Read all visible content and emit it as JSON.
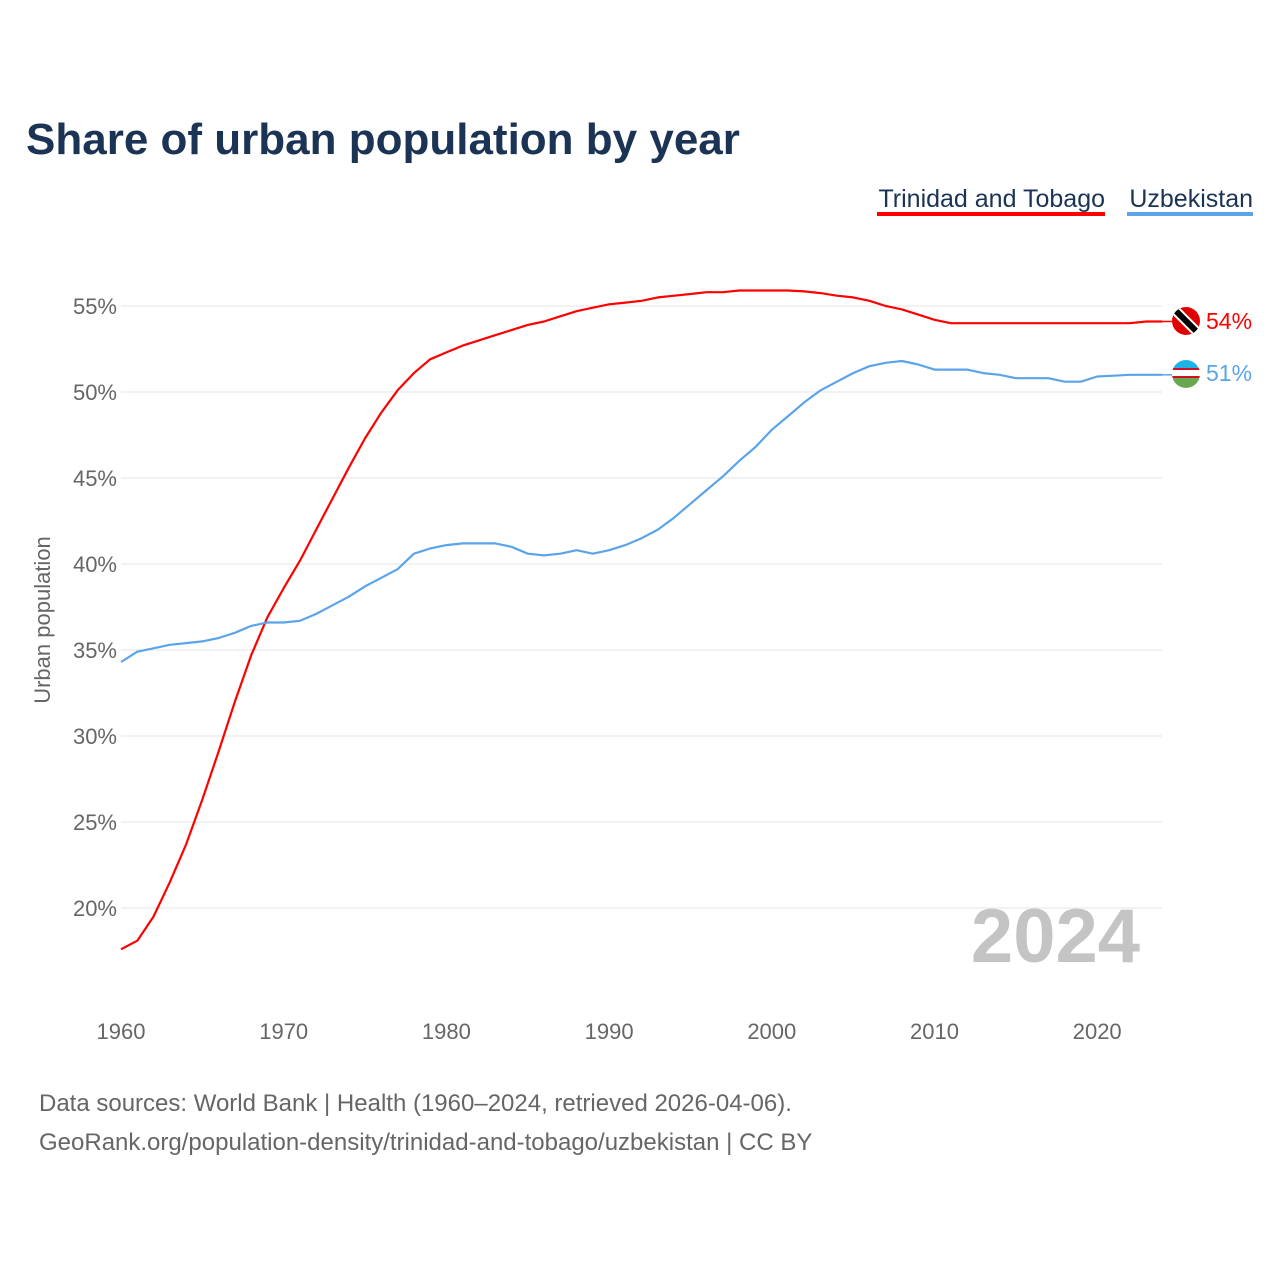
{
  "chart_data": {
    "type": "line",
    "title": "Share of urban population by year",
    "ylabel": "Urban population",
    "xlabel": "",
    "ylim": [
      15,
      57
    ],
    "xlim": [
      1960,
      2024
    ],
    "y_ticks": [
      "20%",
      "25%",
      "30%",
      "35%",
      "40%",
      "45%",
      "50%",
      "55%"
    ],
    "y_tick_values": [
      20,
      25,
      30,
      35,
      40,
      45,
      50,
      55
    ],
    "x_ticks": [
      "1960",
      "1970",
      "1980",
      "1990",
      "2000",
      "2010",
      "2020"
    ],
    "x_tick_values": [
      1960,
      1970,
      1980,
      1990,
      2000,
      2010,
      2020
    ],
    "grid": true,
    "legend_position": "top-right",
    "current_year": "2024",
    "x": [
      1960,
      1961,
      1962,
      1963,
      1964,
      1965,
      1966,
      1967,
      1968,
      1969,
      1970,
      1971,
      1972,
      1973,
      1974,
      1975,
      1976,
      1977,
      1978,
      1979,
      1980,
      1981,
      1982,
      1983,
      1984,
      1985,
      1986,
      1987,
      1988,
      1989,
      1990,
      1991,
      1992,
      1993,
      1994,
      1995,
      1996,
      1997,
      1998,
      1999,
      2000,
      2001,
      2002,
      2003,
      2004,
      2005,
      2006,
      2007,
      2008,
      2009,
      2010,
      2011,
      2012,
      2013,
      2014,
      2015,
      2016,
      2017,
      2018,
      2019,
      2020,
      2021,
      2022,
      2023,
      2024
    ],
    "series": [
      {
        "name": "Trinidad and Tobago",
        "color": "#ff0000",
        "end_label": "54%",
        "values": [
          17.6,
          18.1,
          19.5,
          21.5,
          23.7,
          26.3,
          29.1,
          32.0,
          34.7,
          36.9,
          38.6,
          40.2,
          42.0,
          43.8,
          45.6,
          47.3,
          48.8,
          50.1,
          51.1,
          51.9,
          52.3,
          52.7,
          53.0,
          53.3,
          53.6,
          53.9,
          54.1,
          54.4,
          54.7,
          54.9,
          55.1,
          55.2,
          55.3,
          55.5,
          55.6,
          55.7,
          55.8,
          55.8,
          55.9,
          55.9,
          55.9,
          55.9,
          55.85,
          55.75,
          55.6,
          55.5,
          55.3,
          55.0,
          54.8,
          54.5,
          54.2,
          54.0,
          54.0,
          54.0,
          54.0,
          54.0,
          54.0,
          54.0,
          54.0,
          54.0,
          54.0,
          54.0,
          54.0,
          54.1,
          54.1
        ]
      },
      {
        "name": "Uzbekistan",
        "color": "#5ba4ea",
        "end_label": "51%",
        "values": [
          34.3,
          34.9,
          35.1,
          35.3,
          35.4,
          35.5,
          35.7,
          36.0,
          36.4,
          36.6,
          36.6,
          36.7,
          37.1,
          37.6,
          38.1,
          38.7,
          39.2,
          39.7,
          40.6,
          40.9,
          41.1,
          41.2,
          41.2,
          41.2,
          41.0,
          40.6,
          40.5,
          40.6,
          40.8,
          40.6,
          40.8,
          41.1,
          41.5,
          42.0,
          42.7,
          43.5,
          44.3,
          45.1,
          46.0,
          46.8,
          47.8,
          48.6,
          49.4,
          50.1,
          50.6,
          51.1,
          51.5,
          51.7,
          51.8,
          51.6,
          51.3,
          51.3,
          51.3,
          51.1,
          51.0,
          50.8,
          50.8,
          50.8,
          50.6,
          50.6,
          50.9,
          50.95,
          51.0,
          51.0,
          51.0
        ]
      }
    ]
  },
  "footer": {
    "sources": "Data sources: World Bank | Health (1960–2024, retrieved 2026-04-06).",
    "url": "GeoRank.org/population-density/trinidad-and-tobago/uzbekistan | CC BY"
  }
}
